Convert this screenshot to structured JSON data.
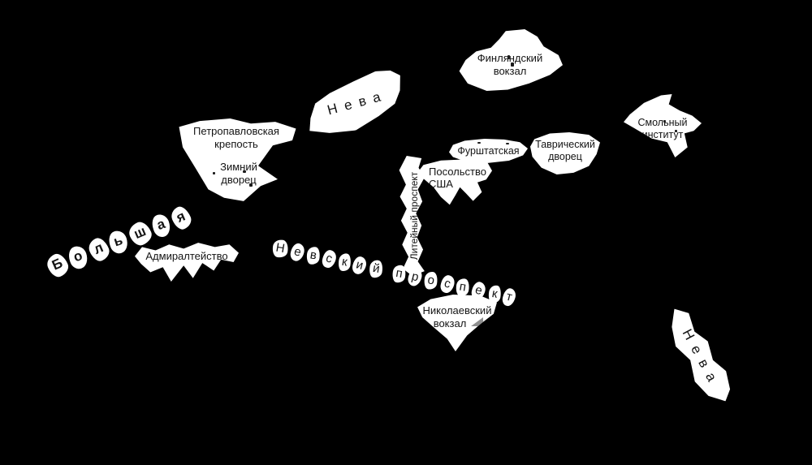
{
  "colors": {
    "background": "#000000",
    "label_background": "#ffffff",
    "text": "#141414",
    "marker_gray": "#8f8f8f"
  },
  "labels": {
    "neva_top": "Нева",
    "finland_station": [
      "Финляндский",
      "вокзал"
    ],
    "peter_paul_fortress": [
      "Петропавловская",
      "крепость"
    ],
    "winter_palace": [
      "Зимний",
      "дворец"
    ],
    "smolny_institute": [
      "Смольный",
      "институт"
    ],
    "furshtatskaya": "Фурштатская",
    "tauride_palace": [
      "Таврический",
      "дворец"
    ],
    "us_embassy": [
      "Посольство",
      "США"
    ],
    "liteyny_prospekt": "Литейный проспект",
    "bolshaya": "Большая",
    "admiralty": "Адмиралтейство",
    "nevsky_prospekt": "Невский проспект",
    "nikolaevsky_station": [
      "Николаевский",
      "вокзал"
    ],
    "neva_bottom": "Нева"
  }
}
